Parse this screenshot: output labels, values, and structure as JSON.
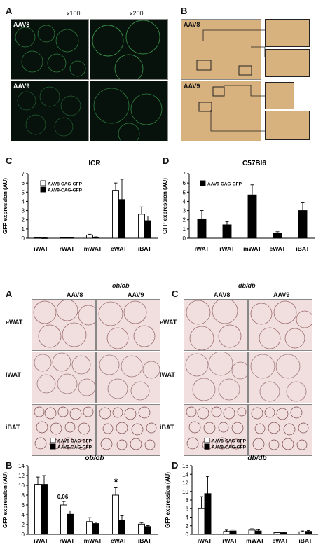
{
  "top": {
    "panelA": {
      "label": "A",
      "cols": [
        "x100",
        "x200"
      ],
      "rows": [
        "AAV8",
        "AAV9"
      ]
    },
    "panelB": {
      "label": "B",
      "rows": [
        "AAV8",
        "AAV9"
      ]
    }
  },
  "bottom_micro": {
    "panelA": {
      "label": "A",
      "title": "ob/ob",
      "cols": [
        "AAV8",
        "AAV9"
      ],
      "rows": [
        "eWAT",
        "iWAT",
        "iBAT"
      ]
    },
    "panelC": {
      "label": "C",
      "title": "db/db",
      "cols": [
        "AAV8",
        "AAV9"
      ],
      "rows": [
        "eWAT",
        "iWAT",
        "iBAT"
      ]
    }
  },
  "colors": {
    "open": "#ffffff",
    "filled": "#000000"
  },
  "chart_data": [
    {
      "id": "C",
      "type": "bar",
      "title": "ICR",
      "ylabel": "GFP expression (AU)",
      "categories": [
        "iWAT",
        "rWAT",
        "mWAT",
        "eWAT",
        "iBAT"
      ],
      "ylim": [
        0,
        7
      ],
      "yticks": [
        "0",
        "1",
        "2",
        "3",
        "4",
        "5",
        "6",
        "7"
      ],
      "series": [
        {
          "name": "AAV8-CAG-GFP",
          "values": [
            0.05,
            0.05,
            0.35,
            5.2,
            2.6
          ],
          "err": [
            0.03,
            0.03,
            0.08,
            0.8,
            0.8
          ]
        },
        {
          "name": "AAV9-CAG-GFP",
          "values": [
            0.03,
            0.05,
            0.1,
            4.2,
            1.9
          ],
          "err": [
            0.02,
            0.03,
            0.05,
            2.2,
            0.5
          ]
        }
      ]
    },
    {
      "id": "D",
      "type": "bar",
      "title": "C57Bl6",
      "ylabel": "GFP expression (AU)",
      "categories": [
        "iWAT",
        "rWAT",
        "mWAT",
        "eWAT",
        "iBAT"
      ],
      "ylim": [
        0,
        7
      ],
      "yticks": [
        "0",
        "1",
        "2",
        "3",
        "4",
        "5",
        "6",
        "7"
      ],
      "series": [
        {
          "name": "AAV9-CAG-GFP",
          "values": [
            2.1,
            1.45,
            4.7,
            0.55,
            3.0
          ],
          "err": [
            0.9,
            0.35,
            1.1,
            0.15,
            0.85
          ]
        }
      ]
    },
    {
      "id": "B",
      "type": "bar",
      "title": "ob/ob",
      "ylabel": "GFP expression (AU)",
      "categories": [
        "iWAT",
        "rWAT",
        "mWAT",
        "eWAT",
        "iBAT"
      ],
      "ylim": [
        0,
        14
      ],
      "yticks": [
        "0",
        "2",
        "4",
        "6",
        "8",
        "10",
        "12",
        "14"
      ],
      "annotations": [
        {
          "category": "rWAT",
          "text": "0,06"
        },
        {
          "category": "eWAT",
          "text": "*"
        }
      ],
      "series": [
        {
          "name": "AAV8-CAG-GFP",
          "values": [
            10.2,
            6.0,
            2.6,
            8.0,
            2.1
          ],
          "err": [
            1.5,
            0.7,
            0.8,
            1.5,
            0.3
          ]
        },
        {
          "name": "AAV9-CAG-GFP",
          "values": [
            10.2,
            4.1,
            2.2,
            2.9,
            1.6
          ],
          "err": [
            1.8,
            0.7,
            0.3,
            0.9,
            0.2
          ]
        }
      ]
    },
    {
      "id": "D2",
      "label": "D",
      "type": "bar",
      "title": "db/db",
      "ylabel": "GFP expression (AU)",
      "categories": [
        "iWAT",
        "rWAT",
        "mWAT",
        "eWAT",
        "iBAT"
      ],
      "ylim": [
        0,
        16
      ],
      "yticks": [
        "0",
        "2",
        "4",
        "6",
        "8",
        "10",
        "12",
        "14",
        "16"
      ],
      "series": [
        {
          "name": "AAV8-CAG-GFP",
          "values": [
            6.0,
            0.7,
            1.0,
            0.4,
            0.6
          ],
          "err": [
            2.8,
            0.3,
            0.3,
            0.15,
            0.2
          ]
        },
        {
          "name": "AAV9-CAG-GFP",
          "values": [
            9.5,
            0.8,
            0.8,
            0.4,
            0.7
          ],
          "err": [
            4.0,
            0.4,
            0.3,
            0.15,
            0.2
          ]
        }
      ]
    }
  ]
}
